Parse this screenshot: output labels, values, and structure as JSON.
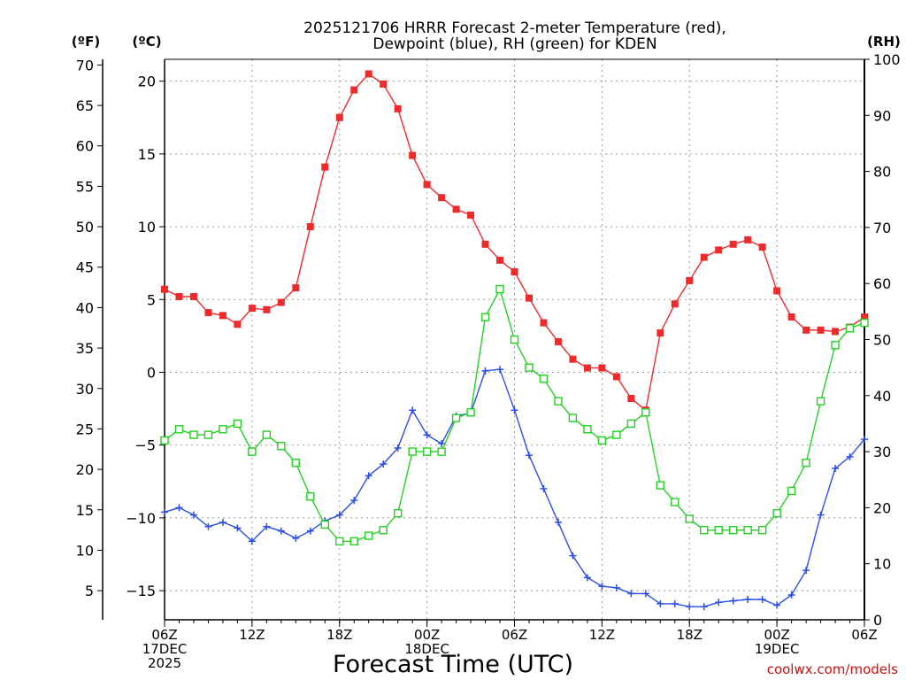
{
  "title": {
    "line1": "2025121706 HRRR Forecast 2-meter Temperature (red),",
    "line2": "Dewpoint (blue), RH (green) for KDEN"
  },
  "units": {
    "fahrenheit": "(ºF)",
    "celsius": "(ºC)",
    "rh": "(RH)"
  },
  "credit": "coolwx.com/models",
  "chart_data": {
    "type": "line",
    "title": "2025121706 HRRR Forecast 2-meter Temperature (red), Dewpoint (blue), RH (green) for KDEN",
    "xlabel": "Forecast Time (UTC)",
    "x_hours": [
      0,
      1,
      2,
      3,
      4,
      5,
      6,
      7,
      8,
      9,
      10,
      11,
      12,
      13,
      14,
      15,
      16,
      17,
      18,
      19,
      20,
      21,
      22,
      23,
      24,
      25,
      26,
      27,
      28,
      29,
      30,
      31,
      32,
      33,
      34,
      35,
      36,
      37,
      38,
      39,
      40,
      41,
      42,
      43,
      44,
      45,
      46,
      47,
      48
    ],
    "x_tick_labels": [
      {
        "hour": 0,
        "lines": [
          "06Z",
          "17DEC",
          "2025"
        ]
      },
      {
        "hour": 6,
        "lines": [
          "12Z"
        ]
      },
      {
        "hour": 12,
        "lines": [
          "18Z"
        ]
      },
      {
        "hour": 18,
        "lines": [
          "00Z",
          "18DEC"
        ]
      },
      {
        "hour": 24,
        "lines": [
          "06Z"
        ]
      },
      {
        "hour": 30,
        "lines": [
          "12Z"
        ]
      },
      {
        "hour": 36,
        "lines": [
          "18Z"
        ]
      },
      {
        "hour": 42,
        "lines": [
          "00Z",
          "19DEC"
        ]
      },
      {
        "hour": 48,
        "lines": [
          "06Z"
        ]
      }
    ],
    "y_celsius": {
      "range": [
        -17,
        21.5
      ],
      "ticks": [
        20,
        15,
        10,
        5,
        0,
        -5,
        -10,
        -15
      ]
    },
    "y_fahrenheit": {
      "ticks": [
        70,
        65,
        60,
        55,
        50,
        45,
        40,
        35,
        30,
        25,
        20,
        15,
        10,
        5
      ]
    },
    "y_rh": {
      "range": [
        0,
        100
      ],
      "ticks": [
        100,
        90,
        80,
        70,
        60,
        50,
        40,
        30,
        20,
        10,
        0
      ]
    },
    "grid": true,
    "series": [
      {
        "name": "Temperature",
        "unit": "C",
        "axis": "celsius",
        "color": "#ee2b2b",
        "marker": "filled-square",
        "values": [
          5.7,
          5.2,
          5.2,
          4.1,
          3.9,
          3.3,
          4.4,
          4.3,
          4.8,
          5.8,
          10.0,
          14.1,
          17.5,
          19.4,
          20.5,
          19.8,
          18.1,
          14.9,
          12.9,
          12.0,
          11.2,
          10.8,
          8.8,
          7.7,
          6.9,
          5.1,
          3.4,
          2.1,
          0.9,
          0.3,
          0.3,
          -0.3,
          -1.8,
          -2.6,
          2.7,
          4.7,
          6.3,
          7.9,
          8.4,
          8.8,
          9.1,
          8.6,
          5.6,
          3.8,
          2.9,
          2.9,
          2.8,
          3.1,
          3.8
        ]
      },
      {
        "name": "Dewpoint",
        "unit": "C",
        "axis": "celsius",
        "color": "#2b4fe6",
        "marker": "plus",
        "values": [
          -9.6,
          -9.3,
          -9.8,
          -10.6,
          -10.3,
          -10.7,
          -11.6,
          -10.6,
          -10.9,
          -11.4,
          -10.9,
          -10.2,
          -9.8,
          -8.8,
          -7.1,
          -6.3,
          -5.2,
          -2.6,
          -4.3,
          -4.9,
          -3.0,
          -2.8,
          0.1,
          0.2,
          -2.6,
          -5.7,
          -8.0,
          -10.3,
          -12.6,
          -14.1,
          -14.7,
          -14.8,
          -15.2,
          -15.2,
          -15.9,
          -15.9,
          -16.1,
          -16.1,
          -15.8,
          -15.7,
          -15.6,
          -15.6,
          -16.0,
          -15.3,
          -13.6,
          -9.8,
          -6.6,
          -5.8,
          -4.6
        ]
      },
      {
        "name": "RH",
        "unit": "%",
        "axis": "rh",
        "color": "#22d022",
        "marker": "open-square",
        "values": [
          32,
          34,
          33,
          33,
          34,
          35,
          30,
          33,
          31,
          28,
          22,
          17,
          14,
          14,
          15,
          16,
          19,
          30,
          30,
          30,
          36,
          37,
          54,
          59,
          50,
          45,
          43,
          39,
          36,
          34,
          32,
          33,
          35,
          37,
          24,
          21,
          18,
          16,
          16,
          16,
          16,
          16,
          19,
          23,
          28,
          39,
          49,
          52,
          53
        ]
      }
    ]
  }
}
